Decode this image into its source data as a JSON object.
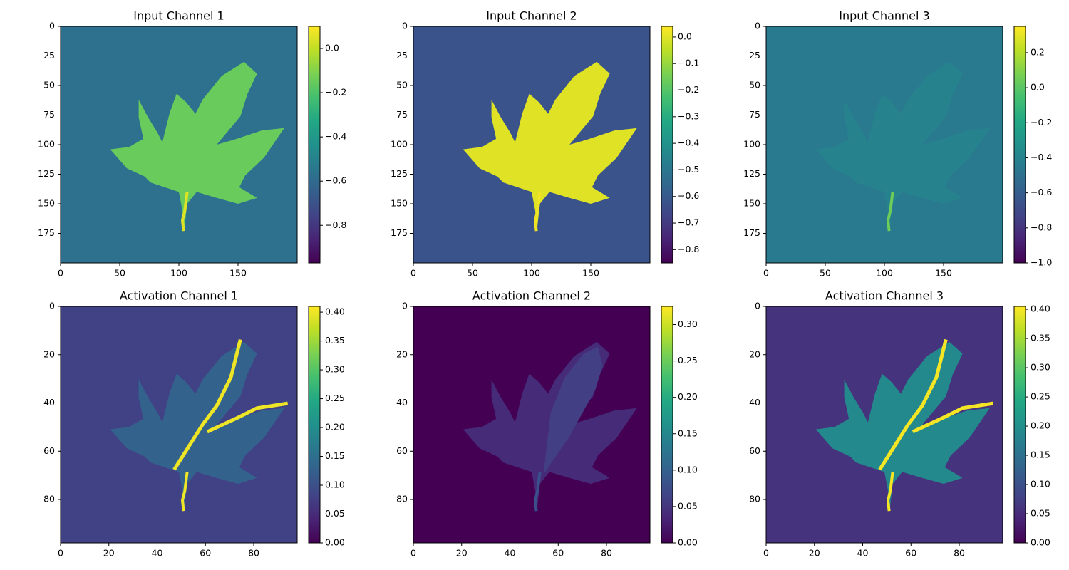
{
  "chart_data": [
    {
      "type": "heatmap",
      "title": "Input Channel 1",
      "xlim": [
        0,
        200
      ],
      "ylim": [
        200,
        0
      ],
      "x_ticks": [
        "0",
        "50",
        "100",
        "150"
      ],
      "y_ticks": [
        "0",
        "25",
        "50",
        "75",
        "100",
        "125",
        "150",
        "175"
      ],
      "colorbar": {
        "min": -0.97,
        "max": 0.1,
        "ticks": [
          "0.0",
          "−0.2",
          "−0.4",
          "−0.6",
          "−0.8"
        ]
      },
      "content": "maple leaf image, leaf brighter than background",
      "values": {
        "background": -0.57,
        "leaf": -0.15,
        "stem": 0.05
      }
    },
    {
      "type": "heatmap",
      "title": "Input Channel 2",
      "xlim": [
        0,
        200
      ],
      "ylim": [
        200,
        0
      ],
      "x_ticks": [
        "0",
        "50",
        "100",
        "150"
      ],
      "y_ticks": [
        "0",
        "25",
        "50",
        "75",
        "100",
        "125",
        "150",
        "175"
      ],
      "colorbar": {
        "min": -0.85,
        "max": 0.04,
        "ticks": [
          "0.0",
          "−0.1",
          "−0.2",
          "−0.3",
          "−0.4",
          "−0.5",
          "−0.6",
          "−0.7",
          "−0.8"
        ]
      },
      "content": "maple leaf image, leaf near maximum",
      "values": {
        "background": -0.62,
        "leaf": 0.0,
        "stem": 0.02
      }
    },
    {
      "type": "heatmap",
      "title": "Input Channel 3",
      "xlim": [
        0,
        200
      ],
      "ylim": [
        200,
        0
      ],
      "x_ticks": [
        "0",
        "50",
        "100",
        "150"
      ],
      "y_ticks": [
        "0",
        "25",
        "50",
        "75",
        "100",
        "125",
        "150",
        "175"
      ],
      "colorbar": {
        "min": -1.0,
        "max": 0.35,
        "ticks": [
          "0.2",
          "0.0",
          "−0.2",
          "−0.4",
          "−0.6",
          "−0.8",
          "−1.0"
        ]
      },
      "content": "maple leaf image, low contrast with background",
      "values": {
        "background": -0.45,
        "leaf": -0.4,
        "stem": 0.05
      }
    },
    {
      "type": "heatmap",
      "title": "Activation Channel 1",
      "xlim": [
        0,
        98
      ],
      "ylim": [
        98,
        0
      ],
      "x_ticks": [
        "0",
        "20",
        "40",
        "60",
        "80"
      ],
      "y_ticks": [
        "0",
        "20",
        "40",
        "60",
        "80"
      ],
      "colorbar": {
        "min": 0.0,
        "max": 0.41,
        "ticks": [
          "0.00",
          "0.05",
          "0.10",
          "0.15",
          "0.20",
          "0.25",
          "0.30",
          "0.35",
          "0.40"
        ]
      },
      "content": "activation map highlighting leaf edges",
      "values": {
        "background": 0.08,
        "leaf": 0.13,
        "edges": 0.4
      }
    },
    {
      "type": "heatmap",
      "title": "Activation Channel 2",
      "xlim": [
        0,
        98
      ],
      "ylim": [
        98,
        0
      ],
      "x_ticks": [
        "0",
        "20",
        "40",
        "60",
        "80"
      ],
      "y_ticks": [
        "0",
        "20",
        "40",
        "60",
        "80"
      ],
      "colorbar": {
        "min": 0.0,
        "max": 0.325,
        "ticks": [
          "0.00",
          "0.05",
          "0.10",
          "0.15",
          "0.20",
          "0.25",
          "0.30"
        ]
      },
      "content": "activation map mostly zero, weak response on upper-right lobe",
      "values": {
        "background": 0.0,
        "leaf": 0.04,
        "stem": 0.08
      }
    },
    {
      "type": "heatmap",
      "title": "Activation Channel 3",
      "xlim": [
        0,
        98
      ],
      "ylim": [
        98,
        0
      ],
      "x_ticks": [
        "0",
        "20",
        "40",
        "60",
        "80"
      ],
      "y_ticks": [
        "0",
        "20",
        "40",
        "60",
        "80"
      ],
      "colorbar": {
        "min": 0.0,
        "max": 0.405,
        "ticks": [
          "0.00",
          "0.05",
          "0.10",
          "0.15",
          "0.20",
          "0.25",
          "0.30",
          "0.35",
          "0.40"
        ]
      },
      "content": "activation map highlighting whole leaf and veins",
      "values": {
        "background": 0.06,
        "leaf": 0.19,
        "edges": 0.4
      }
    }
  ]
}
